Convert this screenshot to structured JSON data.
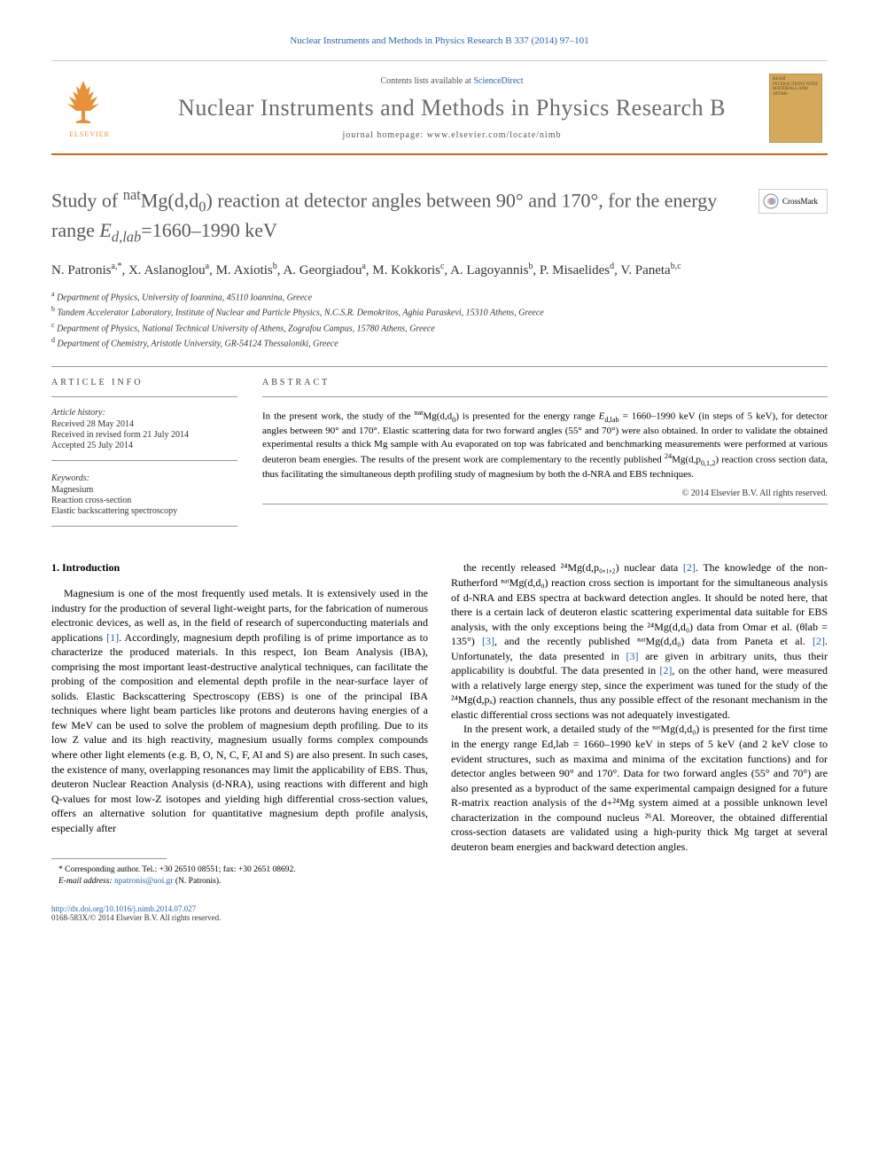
{
  "header": {
    "journal_ref": "Nuclear Instruments and Methods in Physics Research B 337 (2014) 97–101",
    "contents_line_prefix": "Contents lists available at ",
    "contents_link": "ScienceDirect",
    "journal_name": "Nuclear Instruments and Methods in Physics Research B",
    "homepage_prefix": "journal homepage: ",
    "homepage_url": "www.elsevier.com/locate/nimb",
    "publisher_logo_label": "ELSEVIER",
    "cover_text": "BEAM INTERACTIONS WITH MATERIALS AND ATOMS"
  },
  "crossmark_label": "CrossMark",
  "title_parts": {
    "p1": "Study of ",
    "p2": "Mg(d,d",
    "p3": ") reaction at detector angles between 90° and 170°, for the energy range ",
    "p4": "=1660–1990 keV",
    "sup1": "nat",
    "sub1": "0",
    "italic1": "E",
    "sub2": "d,lab"
  },
  "authors": [
    {
      "name": "N. Patronis",
      "marks": "a,*"
    },
    {
      "name": "X. Aslanoglou",
      "marks": "a"
    },
    {
      "name": "M. Axiotis",
      "marks": "b"
    },
    {
      "name": "A. Georgiadou",
      "marks": "a"
    },
    {
      "name": "M. Kokkoris",
      "marks": "c"
    },
    {
      "name": "A. Lagoyannis",
      "marks": "b"
    },
    {
      "name": "P. Misaelides",
      "marks": "d"
    },
    {
      "name": "V. Paneta",
      "marks": "b,c"
    }
  ],
  "affiliations": [
    {
      "mark": "a",
      "text": "Department of Physics, University of Ioannina, 45110 Ioannina, Greece"
    },
    {
      "mark": "b",
      "text": "Tandem Accelerator Laboratory, Institute of Nuclear and Particle Physics, N.C.S.R. Demokritos, Aghia Paraskevi, 15310 Athens, Greece"
    },
    {
      "mark": "c",
      "text": "Department of Physics, National Technical University of Athens, Zografou Campus, 15780 Athens, Greece"
    },
    {
      "mark": "d",
      "text": "Department of Chemistry, Aristotle University, GR-54124 Thessaloniki, Greece"
    }
  ],
  "article_info": {
    "heading": "ARTICLE INFO",
    "history_label": "Article history:",
    "received": "Received 28 May 2014",
    "revised": "Received in revised form 21 July 2014",
    "accepted": "Accepted 25 July 2014",
    "keywords_label": "Keywords:",
    "keywords": [
      "Magnesium",
      "Reaction cross-section",
      "Elastic backscattering spectroscopy"
    ]
  },
  "abstract": {
    "heading": "ABSTRACT",
    "text_parts": {
      "p1": "In the present work, the study of the ",
      "sup1": "nat",
      "p2": "Mg(d,d",
      "sub1": "0",
      "p3": ") is presented for the energy range ",
      "i1": "E",
      "sub2": "d,lab",
      "p4": " = 1660–1990 keV (in steps of 5 keV), for detector angles between 90° and 170°. Elastic scattering data for two forward angles (55° and 70°) were also obtained. In order to validate the obtained experimental results a thick Mg sample with Au evaporated on top was fabricated and benchmarking measurements were performed at various deuteron beam energies. The results of the present work are complementary to the recently published ",
      "sup2": "24",
      "p5": "Mg(d,p",
      "sub3": "0,1,2",
      "p6": ") reaction cross section data, thus facilitating the simultaneous depth profiling study of magnesium by both the d-NRA and EBS techniques."
    },
    "copyright": "© 2014 Elsevier B.V. All rights reserved."
  },
  "body": {
    "section_heading": "1. Introduction",
    "col1_para": "Magnesium is one of the most frequently used metals. It is extensively used in the industry for the production of several light-weight parts, for the fabrication of numerous electronic devices, as well as, in the field of research of superconducting materials and applications [1]. Accordingly, magnesium depth profiling is of prime importance as to characterize the produced materials. In this respect, Ion Beam Analysis (IBA), comprising the most important least-destructive analytical techniques, can facilitate the probing of the composition and elemental depth profile in the near-surface layer of solids. Elastic Backscattering Spectroscopy (EBS) is one of the principal IBA techniques where light beam particles like protons and deuterons having energies of a few MeV can be used to solve the problem of magnesium depth profiling. Due to its low Z value and its high reactivity, magnesium usually forms complex compounds where other light elements (e.g. B, O, N, C, F, Al and S) are also present. In such cases, the existence of many, overlapping resonances may limit the applicability of EBS. Thus, deuteron Nuclear Reaction Analysis (d-NRA), using reactions with different and high Q-values for most low-Z isotopes and yielding high differential cross-section values, offers an alternative solution for quantitative magnesium depth profile analysis, especially after",
    "col2_para1": "the recently released ²⁴Mg(d,p₀,₁,₂) nuclear data [2]. The knowledge of the non-Rutherford ⁿᵃᵗMg(d,d₀) reaction cross section is important for the simultaneous analysis of d-NRA and EBS spectra at backward detection angles. It should be noted here, that there is a certain lack of deuteron elastic scattering experimental data suitable for EBS analysis, with the only exceptions being the ²⁴Mg(d,d₀) data from Omar et al. (θlab = 135°) [3], and the recently published ⁿᵃᵗMg(d,d₀) data from Paneta et al. [2]. Unfortunately, the data presented in [3] are given in arbitrary units, thus their applicability is doubtful. The data presented in [2], on the other hand, were measured with a relatively large energy step, since the experiment was tuned for the study of the ²⁴Mg(d,pₓ) reaction channels, thus any possible effect of the resonant mechanism in the elastic differential cross sections was not adequately investigated.",
    "col2_para2": "In the present work, a detailed study of the ⁿᵃᵗMg(d,d₀) is presented for the first time in the energy range Ed,lab = 1660–1990 keV in steps of 5 keV (and 2 keV close to evident structures, such as maxima and minima of the excitation functions) and for detector angles between 90° and 170°. Data for two forward angles (55° and 70°) are also presented as a byproduct of the same experimental campaign designed for a future R-matrix reaction analysis of the d+²⁴Mg system aimed at a possible unknown level characterization in the compound nucleus ²⁶Al. Moreover, the obtained differential cross-section datasets are validated using a high-purity thick Mg target at several deuteron beam energies and backward detection angles."
  },
  "footnote": {
    "corr_line": "* Corresponding author. Tel.: +30 26510 08551; fax: +30 2651 08692.",
    "email_label": "E-mail address:",
    "email": "npatronis@uoi.gr",
    "email_name": "(N. Patronis)."
  },
  "doi": {
    "url": "http://dx.doi.org/10.1016/j.nimb.2014.07.027",
    "issn_line": "0168-583X/© 2014 Elsevier B.V. All rights reserved."
  },
  "colors": {
    "link": "#2864a8",
    "orange_rule": "#d4651f",
    "elsevier_orange": "#e8903a",
    "title_gray": "#5a5a5a",
    "text": "#000000"
  },
  "fonts": {
    "title_size_pt": 22,
    "journal_name_size_pt": 26,
    "body_size_pt": 12,
    "abstract_size_pt": 11,
    "small_size_pt": 10
  }
}
